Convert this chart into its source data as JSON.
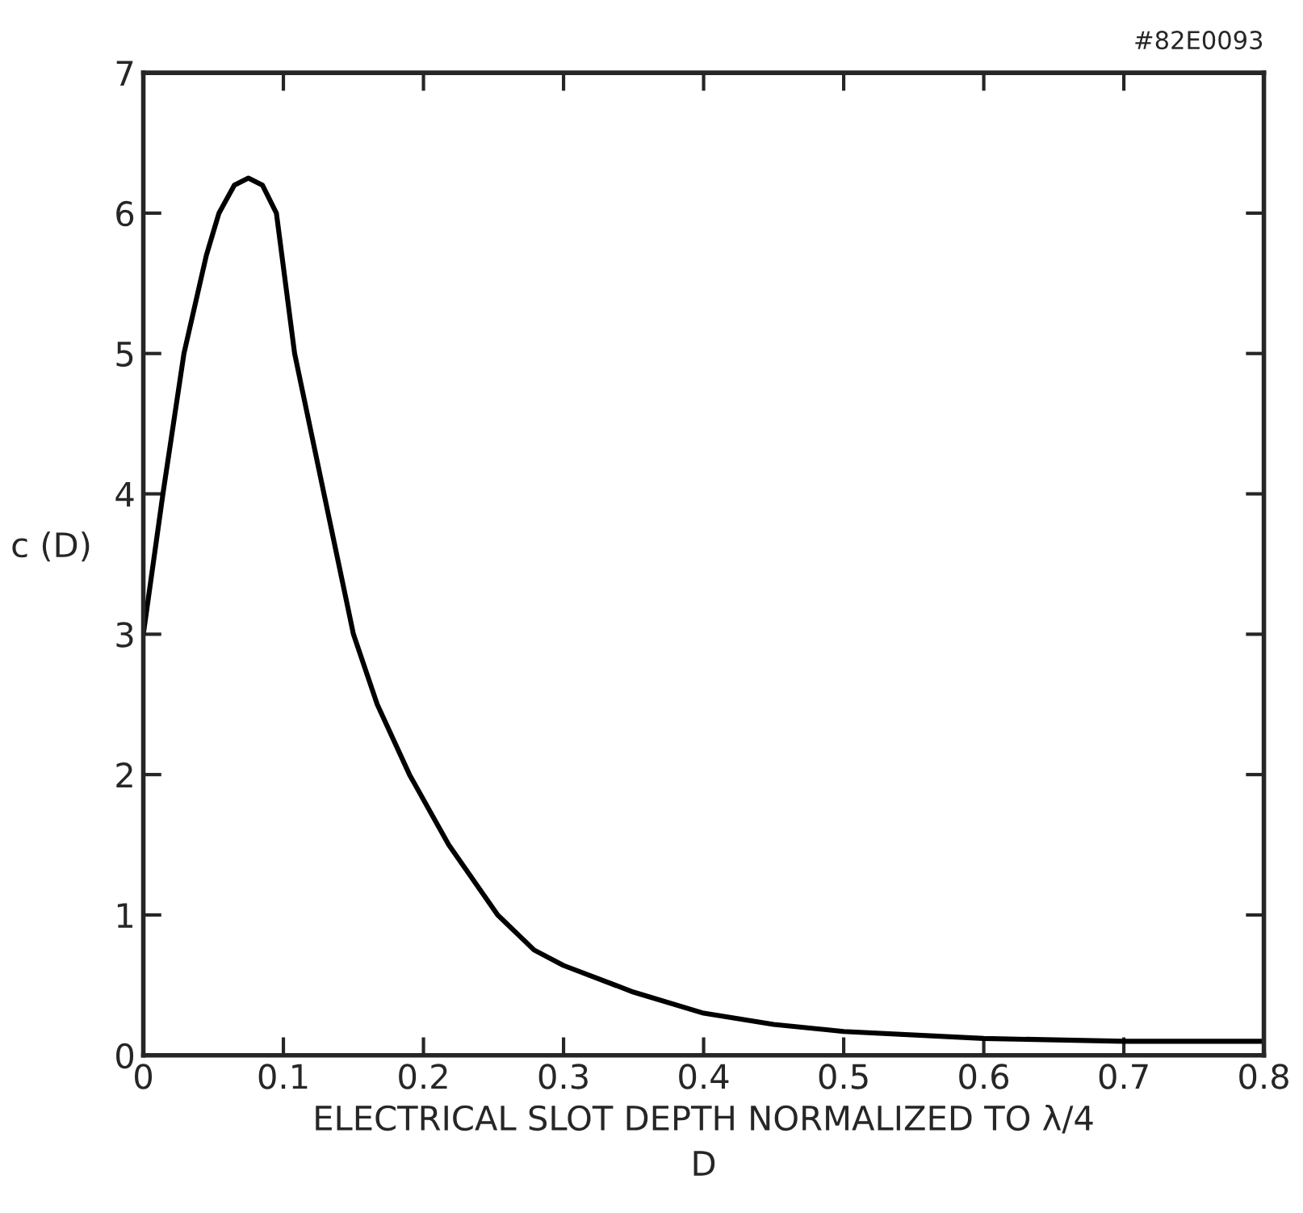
{
  "chart_data": {
    "type": "line",
    "xlabel": "ELECTRICAL SLOT DEPTH NORMALIZED TO λ/4\nD",
    "ylabel": "c (D)",
    "annotations": [
      "#82E0093"
    ],
    "series": [
      {
        "color": "#000000",
        "x": [
          0,
          0.014,
          0.029,
          0.045,
          0.054,
          0.065,
          0.075,
          0.085,
          0.095,
          0.108,
          0.129,
          0.15,
          0.167,
          0.19,
          0.218,
          0.253,
          0.279,
          0.3,
          0.35,
          0.4,
          0.45,
          0.5,
          0.6,
          0.7,
          0.8
        ],
        "values": [
          3.0,
          4.0,
          5.0,
          5.7,
          6.0,
          6.2,
          6.25,
          6.2,
          6.0,
          5.0,
          4.0,
          3.0,
          2.5,
          2.0,
          1.5,
          1.0,
          0.75,
          0.64,
          0.45,
          0.3,
          0.22,
          0.17,
          0.12,
          0.1,
          0.1
        ]
      }
    ],
    "xlim": [
      0,
      0.8
    ],
    "xticks": [
      0,
      0.1,
      0.2,
      0.3,
      0.4,
      0.5,
      0.6,
      0.7,
      0.8
    ],
    "ylim": [
      0,
      7
    ],
    "yticks": [
      0,
      1,
      2,
      3,
      4,
      5,
      6,
      7
    ],
    "grid": false,
    "legend": false,
    "marker": "none",
    "line_style": "solid"
  }
}
